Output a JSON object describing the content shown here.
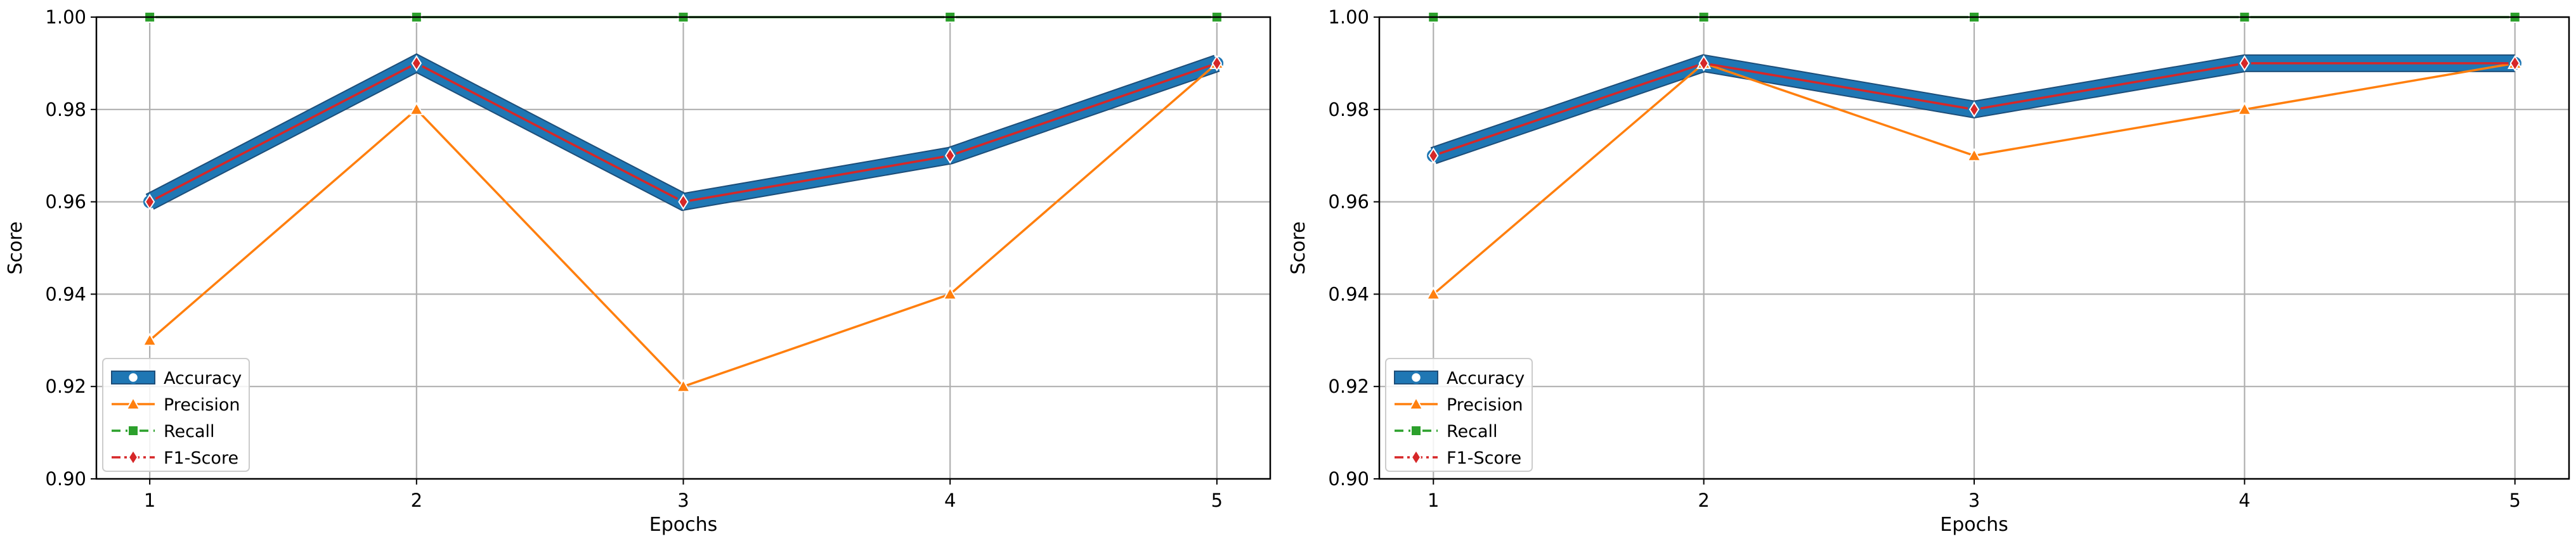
{
  "chart_data": [
    {
      "type": "line",
      "xlabel": "Epochs",
      "ylabel": "Score",
      "x": [
        1,
        2,
        3,
        4,
        5
      ],
      "xlim": [
        0.8,
        5.2
      ],
      "ylim": [
        0.9,
        1.0
      ],
      "yticks": [
        "0.90",
        "0.92",
        "0.94",
        "0.96",
        "0.98",
        "1.00"
      ],
      "xticks": [
        "1",
        "2",
        "3",
        "4",
        "5"
      ],
      "grid": true,
      "legend_position": "lower-left",
      "series": [
        {
          "name": "Accuracy",
          "values": [
            0.96,
            0.99,
            0.96,
            0.97,
            0.99
          ],
          "color": "#1f77b4",
          "marker": "circle"
        },
        {
          "name": "Precision",
          "values": [
            0.93,
            0.98,
            0.92,
            0.94,
            0.99
          ],
          "color": "#ff7f0e",
          "marker": "triangle"
        },
        {
          "name": "Recall",
          "values": [
            1.0,
            1.0,
            1.0,
            1.0,
            1.0
          ],
          "color": "#2ca02c",
          "marker": "square"
        },
        {
          "name": "F1-Score",
          "values": [
            0.96,
            0.99,
            0.96,
            0.97,
            0.99
          ],
          "color": "#d62728",
          "marker": "diamond"
        }
      ]
    },
    {
      "type": "line",
      "xlabel": "Epochs",
      "ylabel": "Score",
      "x": [
        1,
        2,
        3,
        4,
        5
      ],
      "xlim": [
        0.8,
        5.2
      ],
      "ylim": [
        0.9,
        1.0
      ],
      "yticks": [
        "0.90",
        "0.92",
        "0.94",
        "0.96",
        "0.98",
        "1.00"
      ],
      "xticks": [
        "1",
        "2",
        "3",
        "4",
        "5"
      ],
      "grid": true,
      "legend_position": "lower-left",
      "series": [
        {
          "name": "Accuracy",
          "values": [
            0.97,
            0.99,
            0.98,
            0.99,
            0.99
          ],
          "color": "#1f77b4",
          "marker": "circle"
        },
        {
          "name": "Precision",
          "values": [
            0.94,
            0.99,
            0.97,
            0.98,
            0.99
          ],
          "color": "#ff7f0e",
          "marker": "triangle"
        },
        {
          "name": "Recall",
          "values": [
            1.0,
            1.0,
            1.0,
            1.0,
            1.0
          ],
          "color": "#2ca02c",
          "marker": "square"
        },
        {
          "name": "F1-Score",
          "values": [
            0.97,
            0.99,
            0.98,
            0.99,
            0.99
          ],
          "color": "#d62728",
          "marker": "diamond"
        }
      ]
    }
  ]
}
